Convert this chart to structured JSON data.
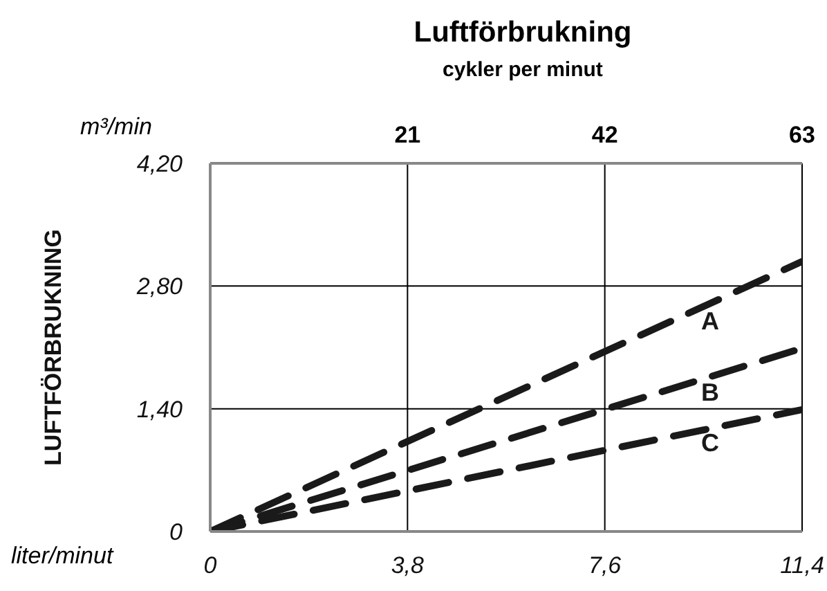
{
  "chart_data": {
    "type": "line",
    "title": "Luftförbrukning",
    "subtitle": "cykler per minut",
    "ylabel": "LUFTFÖRBRUKNING",
    "annotations": [
      "m³/min",
      "liter/minut"
    ],
    "x": [
      0,
      11.4
    ],
    "series": [
      {
        "name": "A",
        "color": "#1a1a1a",
        "values": [
          0,
          3.08
        ]
      },
      {
        "name": "B",
        "color": "#1a1a1a",
        "values": [
          0,
          2.09
        ]
      },
      {
        "name": "C",
        "color": "#1a1a1a",
        "values": [
          0,
          1.39
        ]
      }
    ],
    "xlim": [
      0,
      11.4
    ],
    "xticks": [
      {
        "value": 0,
        "label": "0"
      },
      {
        "value": 3.8,
        "label": "3,8"
      },
      {
        "value": 7.6,
        "label": "7,6"
      },
      {
        "value": 11.4,
        "label": "11,4"
      }
    ],
    "x2lim": [
      0,
      63
    ],
    "x2ticks": [
      21,
      42,
      63
    ],
    "ylim": [
      0,
      4.2
    ],
    "yticks": [
      {
        "value": 0,
        "label": "0"
      },
      {
        "value": 1.4,
        "label": "1,40"
      },
      {
        "value": 2.8,
        "label": "2,80"
      },
      {
        "value": 4.2,
        "label": "4,20"
      }
    ],
    "grid": true,
    "legend": false,
    "marker": "none",
    "line_style": "dashed"
  }
}
